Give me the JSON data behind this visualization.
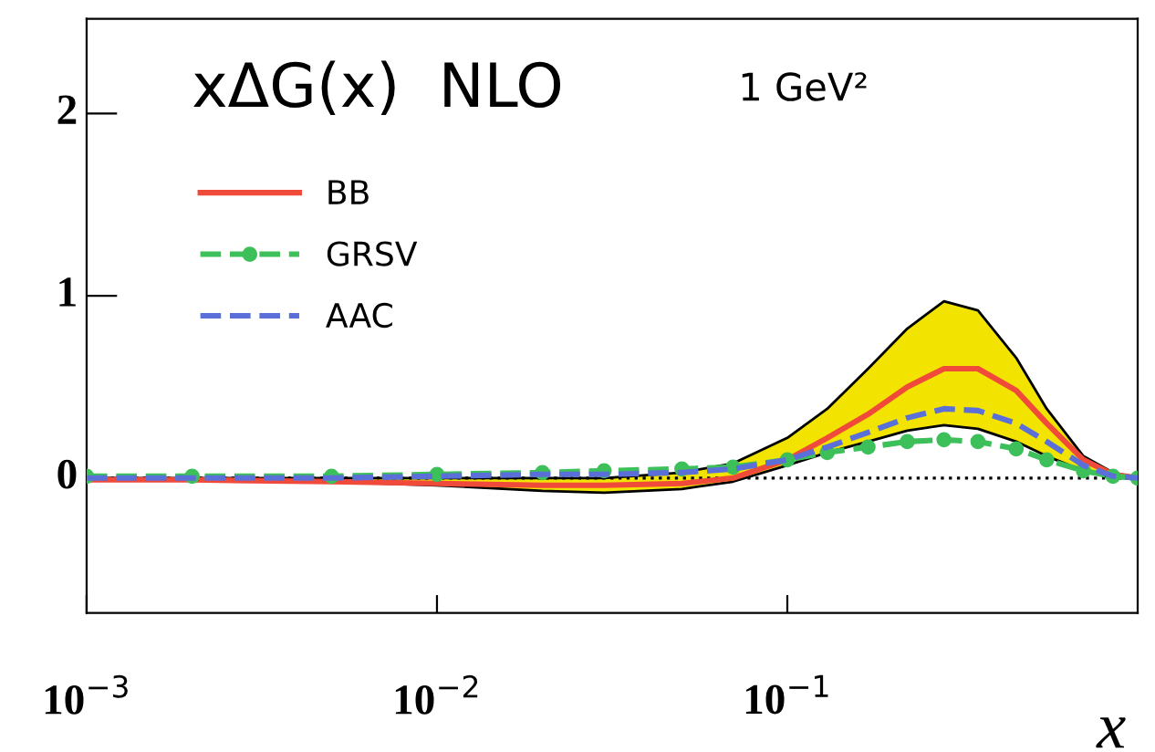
{
  "chart_data": {
    "type": "line",
    "title": "xΔG(x)  NLO",
    "subtitle": "1 GeV²",
    "xlabel": "x",
    "log": "x",
    "xlim": [
      0.001,
      1
    ],
    "ylim": [
      -0.74,
      2.52
    ],
    "xticks": [
      {
        "value": 0.001,
        "label": "10$^{−3}$"
      },
      {
        "value": 0.01,
        "label": "10$^{−2}$"
      },
      {
        "value": 0.1,
        "label": "10$^{−1}$"
      }
    ],
    "yticks": [
      0,
      1,
      2
    ],
    "grid": false,
    "legend": "top left",
    "x": [
      0.001,
      0.002,
      0.005,
      0.01,
      0.02,
      0.03,
      0.05,
      0.07,
      0.1,
      0.13,
      0.17,
      0.22,
      0.28,
      0.35,
      0.45,
      0.55,
      0.7,
      0.85,
      1.0
    ],
    "series": [
      {
        "name": "BB",
        "color": "#f04a3a",
        "line_style": "solid",
        "marker": "none",
        "values": [
          -0.01,
          -0.01,
          -0.02,
          -0.03,
          -0.04,
          -0.04,
          -0.03,
          0.0,
          0.1,
          0.22,
          0.35,
          0.5,
          0.6,
          0.6,
          0.48,
          0.3,
          0.1,
          0.02,
          0.0
        ],
        "lower": [
          -0.01,
          -0.01,
          -0.02,
          -0.04,
          -0.07,
          -0.08,
          -0.06,
          -0.02,
          0.07,
          0.14,
          0.2,
          0.26,
          0.29,
          0.27,
          0.2,
          0.12,
          0.04,
          0.0,
          0.0
        ],
        "upper": [
          0.0,
          0.0,
          0.0,
          0.0,
          0.0,
          0.0,
          0.03,
          0.08,
          0.22,
          0.38,
          0.6,
          0.82,
          0.97,
          0.92,
          0.66,
          0.38,
          0.12,
          0.03,
          0.0
        ]
      },
      {
        "name": "GRSV",
        "color": "#3dbf5a",
        "line_style": "dashed",
        "marker": "circle",
        "values": [
          0.01,
          0.01,
          0.01,
          0.02,
          0.03,
          0.04,
          0.05,
          0.06,
          0.1,
          0.14,
          0.17,
          0.2,
          0.21,
          0.2,
          0.16,
          0.1,
          0.04,
          0.01,
          0.0
        ]
      },
      {
        "name": "AAC",
        "color": "#5a6fd8",
        "line_style": "dashed",
        "marker": "none",
        "values": [
          0.0,
          0.0,
          0.0,
          0.01,
          0.02,
          0.02,
          0.03,
          0.05,
          0.1,
          0.17,
          0.25,
          0.33,
          0.38,
          0.37,
          0.3,
          0.2,
          0.07,
          0.01,
          0.0
        ]
      }
    ],
    "ref_lines": [
      {
        "axis": "y",
        "value": 0,
        "line_style": "dotted",
        "color": "#000000"
      }
    ]
  }
}
